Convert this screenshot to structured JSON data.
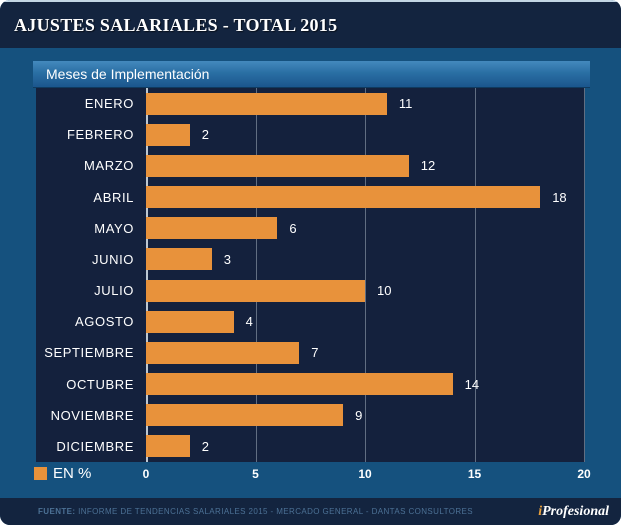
{
  "header": {
    "title": "AJUSTES SALARIALES - TOTAL 2015"
  },
  "chart": {
    "subtitle": "Meses de Implementación",
    "legend_label": "EN %"
  },
  "chart_data": {
    "type": "bar",
    "orientation": "horizontal",
    "title": "AJUSTES SALARIALES - TOTAL 2015",
    "subtitle": "Meses de Implementación",
    "categories": [
      "ENERO",
      "FEBRERO",
      "MARZO",
      "ABRIL",
      "MAYO",
      "JUNIO",
      "JULIO",
      "AGOSTO",
      "SEPTIEMBRE",
      "OCTUBRE",
      "NOVIEMBRE",
      "DICIEMBRE"
    ],
    "values": [
      11,
      2,
      12,
      18,
      6,
      3,
      10,
      4,
      7,
      14,
      9,
      2
    ],
    "xlabel": "EN %",
    "ylabel": "",
    "xlim": [
      0,
      20
    ],
    "xticks": [
      0,
      5,
      10,
      15,
      20
    ],
    "grid": "vertical",
    "legend": {
      "label": "EN %",
      "position": "bottom-left"
    },
    "bar_color": "#E8923B"
  },
  "colors": {
    "accent_orange": "#E8923B",
    "navy_header": "#13243F",
    "navy_plot": "#14213D",
    "body_blue": "#15517E"
  },
  "footer": {
    "source_label": "FUENTE:",
    "source_text": " INFORME DE TENDENCIAS SALARIALES 2015 - MERCADO GENERAL - DANTAS CONSULTORES",
    "logo_prefix": "i",
    "logo_text": "Profesional"
  }
}
